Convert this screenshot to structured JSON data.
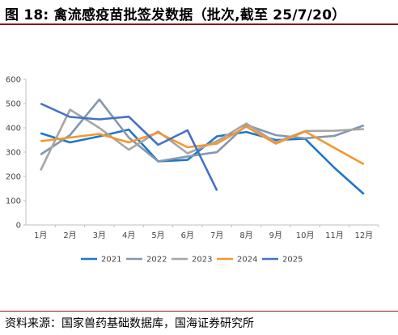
{
  "header": {
    "figure_label": "图 18:",
    "title": "禽流感疫苗批签发数据（批次,截至 25/7/20）"
  },
  "source": "资料来源：国家兽药基础数据库，国海证券研究所",
  "chart_data": {
    "type": "line",
    "categories": [
      "1月",
      "2月",
      "3月",
      "4月",
      "5月",
      "6月",
      "7月",
      "8月",
      "9月",
      "10月",
      "11月",
      "12月"
    ],
    "ylim": [
      0,
      600
    ],
    "yticks": [
      0,
      100,
      200,
      300,
      400,
      500,
      600
    ],
    "grid": false,
    "legend_position": "bottom",
    "series": [
      {
        "name": "2021",
        "color": "#1f77c8",
        "values": [
          378,
          340,
          365,
          393,
          262,
          268,
          365,
          383,
          350,
          355,
          235,
          127
        ]
      },
      {
        "name": "2022",
        "color": "#8497b0",
        "values": [
          290,
          370,
          517,
          360,
          262,
          282,
          300,
          412,
          370,
          357,
          367,
          410
        ]
      },
      {
        "name": "2023",
        "color": "#a6a6a6",
        "values": [
          225,
          475,
          400,
          310,
          385,
          295,
          345,
          418,
          340,
          387,
          388,
          395
        ]
      },
      {
        "name": "2024",
        "color": "#f5962f",
        "values": [
          345,
          360,
          375,
          340,
          380,
          320,
          335,
          405,
          335,
          385,
          null,
          250
        ]
      },
      {
        "name": "2025",
        "color": "#4472c4",
        "values": [
          500,
          445,
          435,
          446,
          330,
          390,
          142,
          null,
          null,
          null,
          null,
          null
        ]
      }
    ]
  }
}
